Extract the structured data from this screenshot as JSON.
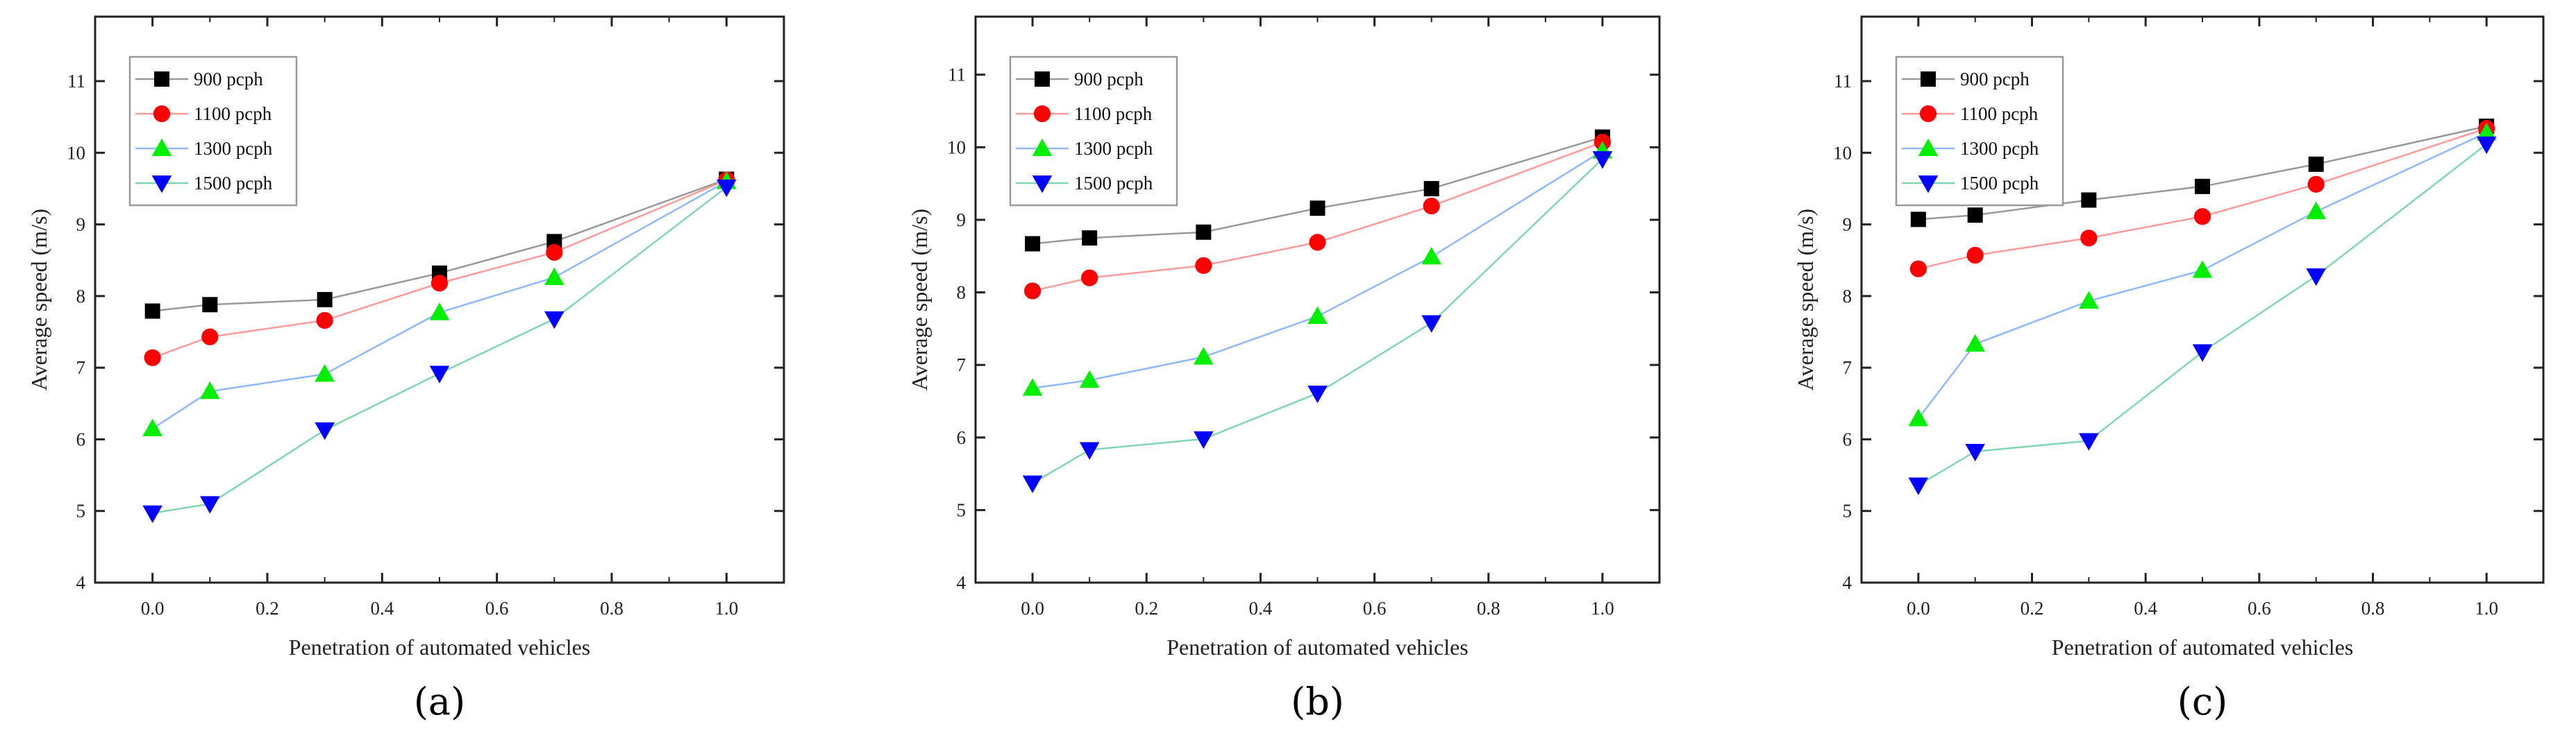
{
  "chart_data": [
    {
      "type": "line",
      "panel_label": "(a)",
      "panel_letter": "a",
      "xlabel": "Penetration of automated vehicles",
      "ylabel": "Average speed (m/s)",
      "xlim": [
        -0.1,
        1.1
      ],
      "ylim": [
        4,
        11.9
      ],
      "xticks": [
        "0.0",
        "0.2",
        "0.4",
        "0.6",
        "0.8",
        "1.0"
      ],
      "yticks": [
        "4",
        "5",
        "6",
        "7",
        "8",
        "9",
        "10",
        "11"
      ],
      "legend_position": "top-left",
      "x": [
        0,
        0.1,
        0.3,
        0.5,
        0.7,
        1.0
      ],
      "series": [
        {
          "name": "900 pcph",
          "marker": "square",
          "color": "#000000",
          "line_color": "#999999",
          "values": [
            7.79,
            7.88,
            7.95,
            8.32,
            8.76,
            9.63
          ]
        },
        {
          "name": "1100 pcph",
          "marker": "circle",
          "color": "#ff0000",
          "line_color": "#ff9a9a",
          "values": [
            7.14,
            7.43,
            7.66,
            8.18,
            8.61,
            9.62
          ]
        },
        {
          "name": "1300 pcph",
          "marker": "triangle-up",
          "color": "#00ee00",
          "line_color": "#8fb8ff",
          "values": [
            6.15,
            6.67,
            6.91,
            7.77,
            8.26,
            9.6
          ]
        },
        {
          "name": "1500 pcph",
          "marker": "triangle-down",
          "color": "#0000ff",
          "line_color": "#7fd6b0",
          "values": [
            4.97,
            5.1,
            6.13,
            6.92,
            7.68,
            9.52
          ]
        }
      ]
    },
    {
      "type": "line",
      "panel_label": "(b)",
      "panel_letter": "b",
      "xlabel": "Penetration of automated vehicles",
      "ylabel": "Average speed (m/s)",
      "xlim": [
        -0.1,
        1.1
      ],
      "ylim": [
        4,
        11.8
      ],
      "xticks": [
        "0.0",
        "0.2",
        "0.4",
        "0.6",
        "0.8",
        "1.0"
      ],
      "yticks": [
        "4",
        "5",
        "6",
        "7",
        "8",
        "9",
        "10",
        "11"
      ],
      "legend_position": "top-left",
      "x": [
        0,
        0.1,
        0.3,
        0.5,
        0.7,
        1.0
      ],
      "series": [
        {
          "name": "900 pcph",
          "marker": "square",
          "color": "#000000",
          "line_color": "#999999",
          "values": [
            8.67,
            8.75,
            8.83,
            9.16,
            9.43,
            10.14
          ]
        },
        {
          "name": "1100 pcph",
          "marker": "circle",
          "color": "#ff0000",
          "line_color": "#ff9a9a",
          "values": [
            8.02,
            8.2,
            8.37,
            8.69,
            9.19,
            10.07
          ]
        },
        {
          "name": "1300 pcph",
          "marker": "triangle-up",
          "color": "#00ee00",
          "line_color": "#8fb8ff",
          "values": [
            6.68,
            6.79,
            7.11,
            7.67,
            8.49,
            9.95
          ]
        },
        {
          "name": "1500 pcph",
          "marker": "triangle-down",
          "color": "#0000ff",
          "line_color": "#7fd6b0",
          "values": [
            5.37,
            5.83,
            5.98,
            6.61,
            7.58,
            9.84
          ]
        }
      ]
    },
    {
      "type": "line",
      "panel_label": "(c)",
      "panel_letter": "c",
      "xlabel": "Penetration of automated vehicles",
      "ylabel": "Average speed (m/s)",
      "xlim": [
        -0.1,
        1.1
      ],
      "ylim": [
        4,
        11.9
      ],
      "xticks": [
        "0.0",
        "0.2",
        "0.4",
        "0.6",
        "0.8",
        "1.0"
      ],
      "yticks": [
        "4",
        "5",
        "6",
        "7",
        "8",
        "9",
        "10",
        "11"
      ],
      "legend_position": "top-left",
      "x": [
        0,
        0.1,
        0.3,
        0.5,
        0.7,
        1.0
      ],
      "series": [
        {
          "name": "900 pcph",
          "marker": "square",
          "color": "#000000",
          "line_color": "#999999",
          "values": [
            9.07,
            9.13,
            9.34,
            9.53,
            9.84,
            10.37
          ]
        },
        {
          "name": "1100 pcph",
          "marker": "circle",
          "color": "#ff0000",
          "line_color": "#ff9a9a",
          "values": [
            8.38,
            8.57,
            8.81,
            9.11,
            9.56,
            10.34
          ]
        },
        {
          "name": "1300 pcph",
          "marker": "triangle-up",
          "color": "#00ee00",
          "line_color": "#8fb8ff",
          "values": [
            6.29,
            7.33,
            7.93,
            8.36,
            9.18,
            10.28
          ]
        },
        {
          "name": "1500 pcph",
          "marker": "triangle-down",
          "color": "#0000ff",
          "line_color": "#7fd6b0",
          "values": [
            5.36,
            5.83,
            5.98,
            7.22,
            8.28,
            10.12
          ]
        }
      ]
    }
  ]
}
